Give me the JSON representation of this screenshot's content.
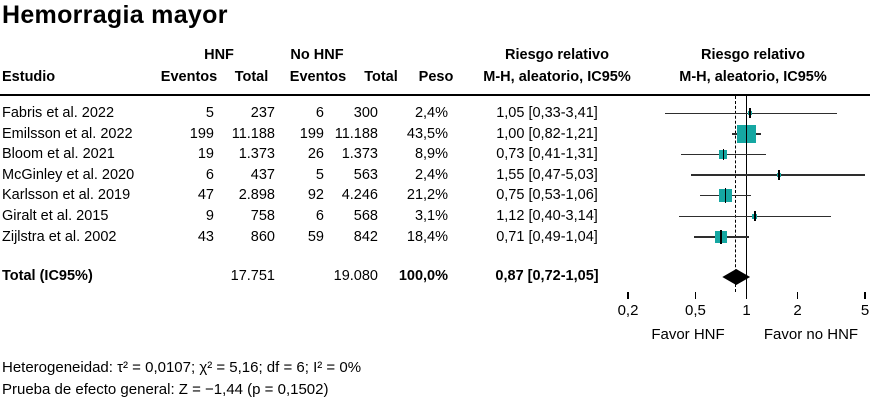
{
  "title": "Hemorragia mayor",
  "table": {
    "group_hnf": "HNF",
    "group_nohnf": "No HNF",
    "rr_header_line1": "Riesgo relativo",
    "rr_header_line2": "M-H, aleatorio, IC95%",
    "headers": {
      "study": "Estudio",
      "events": "Eventos",
      "total": "Total",
      "weight": "Peso"
    }
  },
  "chart_data": {
    "type": "forest",
    "effect_measure": "Riesgo relativo (M-H, aleatorio, IC95%)",
    "studies": [
      {
        "label": "Fabris et al. 2022",
        "hnf_events": "5",
        "hnf_total": "237",
        "nohnf_events": "6",
        "nohnf_total": "300",
        "weight": "2,4%",
        "weight_pct": 2.4,
        "rr_text": "1,05 [0,33-3,41]",
        "rr": 1.05,
        "ci_low": 0.33,
        "ci_high": 3.41
      },
      {
        "label": "Emilsson et al. 2022",
        "hnf_events": "199",
        "hnf_total": "11.188",
        "nohnf_events": "199",
        "nohnf_total": "11.188",
        "weight": "43,5%",
        "weight_pct": 43.5,
        "rr_text": "1,00 [0,82-1,21]",
        "rr": 1.0,
        "ci_low": 0.82,
        "ci_high": 1.21
      },
      {
        "label": "Bloom et al. 2021",
        "hnf_events": "19",
        "hnf_total": "1.373",
        "nohnf_events": "26",
        "nohnf_total": "1.373",
        "weight": "8,9%",
        "weight_pct": 8.9,
        "rr_text": "0,73 [0,41-1,31]",
        "rr": 0.73,
        "ci_low": 0.41,
        "ci_high": 1.31
      },
      {
        "label": "McGinley et al. 2020",
        "hnf_events": "6",
        "hnf_total": "437",
        "nohnf_events": "5",
        "nohnf_total": "563",
        "weight": "2,4%",
        "weight_pct": 2.4,
        "rr_text": "1,55 [0,47-5,03]",
        "rr": 1.55,
        "ci_low": 0.47,
        "ci_high": 5.03
      },
      {
        "label": "Karlsson et al. 2019",
        "hnf_events": "47",
        "hnf_total": "2.898",
        "nohnf_events": "92",
        "nohnf_total": "4.246",
        "weight": "21,2%",
        "weight_pct": 21.2,
        "rr_text": "0,75 [0,53-1,06]",
        "rr": 0.75,
        "ci_low": 0.53,
        "ci_high": 1.06
      },
      {
        "label": "Giralt et al. 2015",
        "hnf_events": "9",
        "hnf_total": "758",
        "nohnf_events": "6",
        "nohnf_total": "568",
        "weight": "3,1%",
        "weight_pct": 3.1,
        "rr_text": "1,12 [0,40-3,14]",
        "rr": 1.12,
        "ci_low": 0.4,
        "ci_high": 3.14
      },
      {
        "label": "Zijlstra et al. 2002",
        "hnf_events": "43",
        "hnf_total": "860",
        "nohnf_events": "59",
        "nohnf_total": "842",
        "weight": "18,4%",
        "weight_pct": 18.4,
        "rr_text": "0,71 [0,49-1,04]",
        "rr": 0.71,
        "ci_low": 0.49,
        "ci_high": 1.04
      }
    ],
    "total": {
      "label": "Total (IC95%)",
      "hnf_total": "17.751",
      "nohnf_total": "19.080",
      "weight": "100,0%",
      "rr_text": "0,87 [0,72-1,05]",
      "rr": 0.87,
      "ci_low": 0.72,
      "ci_high": 1.05
    },
    "axis": {
      "scale": "log",
      "xmin": 0.2,
      "xmax": 5,
      "ticks": [
        0.2,
        0.5,
        1,
        2,
        5
      ],
      "tick_labels": [
        "0,2",
        "0,5",
        "1",
        "2",
        "5"
      ]
    },
    "null_line": 1,
    "pooled_line": 0.87,
    "favor_left": "Favor HNF",
    "favor_right": "Favor no HNF",
    "marker_color": "#15a7a2",
    "diamond_color": "#000000"
  },
  "footnotes": {
    "heterogeneity": "Heterogeneidad: τ² = 0,0107; χ² = 5,16; df = 6; I² = 0%",
    "overall_effect": "Prueba de efecto general: Z = −1,44 (p = 0,1502)"
  }
}
